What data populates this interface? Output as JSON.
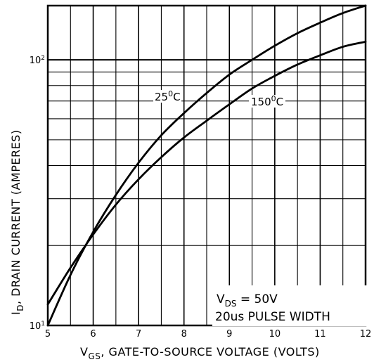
{
  "chart_data": {
    "type": "line",
    "xlabel_main": "V",
    "xlabel_sub": "GS",
    "xlabel_rest": ",  GATE-TO-SOURCE VOLTAGE  (VOLTS)",
    "ylabel_main": "I",
    "ylabel_sub": "D",
    "ylabel_rest": ",  DRAIN CURRENT  (AMPERES)",
    "x_ticks": [
      "5",
      "6",
      "7",
      "8",
      "9",
      "10",
      "11",
      "12"
    ],
    "y_ticks": [
      {
        "base": "10",
        "exp": "1",
        "value": 10
      },
      {
        "base": "10",
        "exp": "2",
        "value": 100
      }
    ],
    "xlim": [
      5,
      12
    ],
    "ylim": [
      10,
      160
    ],
    "yscale": "log",
    "grid": true,
    "series": [
      {
        "name": "25°C",
        "label_main": "25",
        "label_sup": "0",
        "label_unit": "C",
        "x": [
          5,
          5.5,
          6,
          6.5,
          7,
          7.5,
          8,
          8.5,
          9,
          9.5,
          10,
          10.5,
          11,
          11.5,
          12
        ],
        "y": [
          10,
          15.5,
          22.5,
          31,
          41,
          52,
          63,
          75,
          88,
          100,
          113,
          126,
          138,
          150,
          160
        ]
      },
      {
        "name": "150°C",
        "label_main": "150",
        "label_sup": "0",
        "label_unit": "C",
        "x": [
          5,
          5.5,
          6,
          6.5,
          7,
          7.5,
          8,
          8.5,
          9,
          9.5,
          10,
          10.5,
          11,
          11.5,
          12
        ],
        "y": [
          12,
          16.5,
          22,
          28.5,
          35.5,
          43,
          51,
          59,
          68,
          78,
          87,
          96,
          104,
          112,
          117
        ]
      }
    ],
    "annotation": {
      "line1_main": "V",
      "line1_sub": "DS",
      "line1_rest": " = 50V",
      "line2": "20us PULSE WIDTH"
    }
  }
}
